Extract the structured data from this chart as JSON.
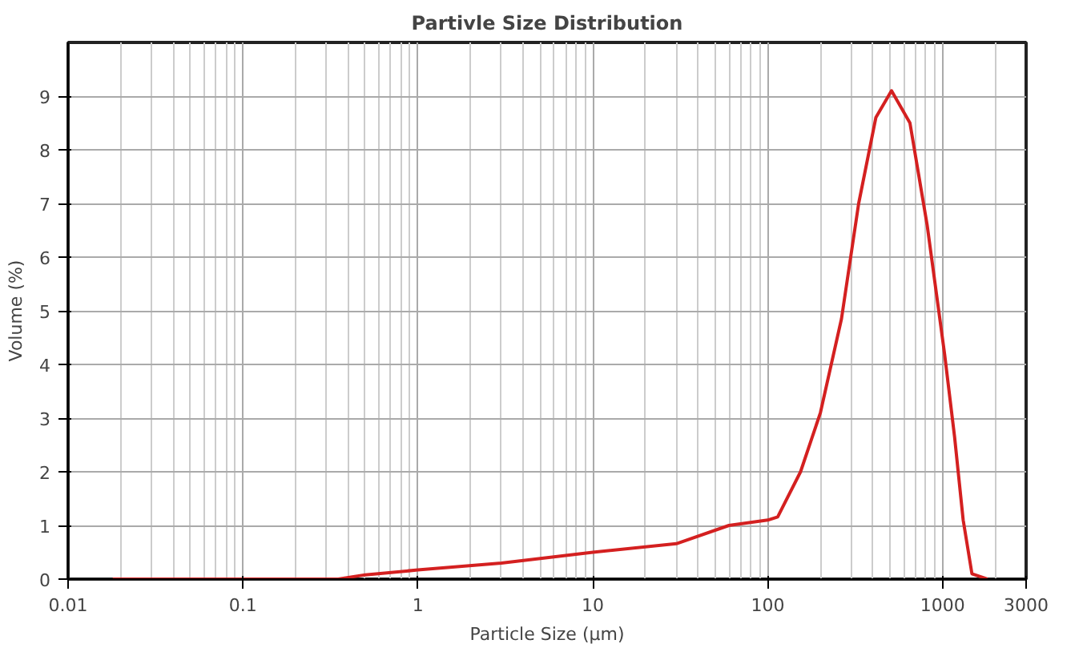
{
  "chart_data": {
    "type": "line",
    "title": "Partivle Size Distribution",
    "xlabel": "Particle Size (µm)",
    "ylabel": "Volume (%)",
    "log": "x",
    "grid": true,
    "marker": "none",
    "line_style": "solid",
    "xlim": [
      0.01,
      3000
    ],
    "xticks": [
      0.01,
      0.1,
      1,
      10,
      100,
      1000,
      3000
    ],
    "ylim": [
      0,
      10
    ],
    "yticks": [
      0,
      1,
      2,
      3,
      4,
      5,
      6,
      7,
      8,
      9
    ],
    "series": [
      {
        "color": "#d42020",
        "x": [
          0.018,
          0.1,
          0.35,
          0.5,
          1,
          3,
          10,
          30,
          60,
          100,
          114,
          154,
          200,
          264,
          331,
          415,
          510,
          650,
          815,
          1025,
          1170,
          1310,
          1470,
          1800
        ],
        "values": [
          0,
          0,
          0,
          0.08,
          0.17,
          0.3,
          0.5,
          0.66,
          1.0,
          1.1,
          1.16,
          2.0,
          3.1,
          4.85,
          7.0,
          8.6,
          9.1,
          8.5,
          6.6,
          4.2,
          2.65,
          1.1,
          0.1,
          0
        ]
      }
    ]
  }
}
